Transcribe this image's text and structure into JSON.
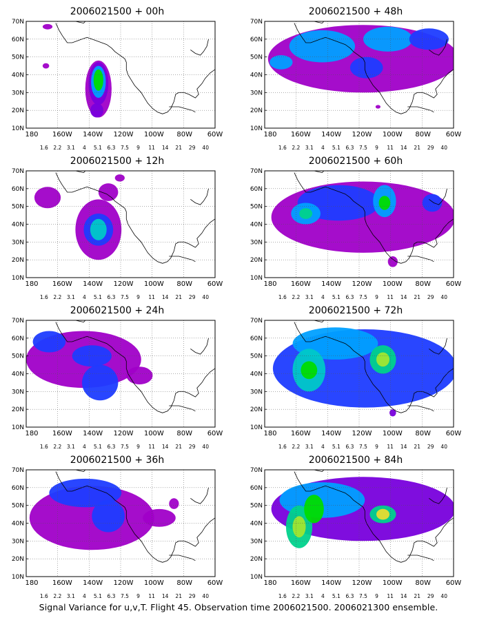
{
  "panels": [
    {
      "title": "2006021500 + 00h"
    },
    {
      "title": "2006021500 + 48h"
    },
    {
      "title": "2006021500 + 12h"
    },
    {
      "title": "2006021500 + 60h"
    },
    {
      "title": "2006021500 + 24h"
    },
    {
      "title": "2006021500 + 72h"
    },
    {
      "title": "2006021500 + 36h"
    },
    {
      "title": "2006021500 + 84h"
    }
  ],
  "lat_labels": [
    "70N",
    "60N",
    "50N",
    "40N",
    "30N",
    "20N",
    "10N"
  ],
  "lon_labels": [
    "180",
    "160W",
    "140W",
    "120W",
    "100W",
    "80W",
    "60W"
  ],
  "colorbar": {
    "labels": [
      "1.6",
      "2.2",
      "3.1",
      "4",
      "5.1",
      "6.3",
      "7.5",
      "9",
      "11",
      "14",
      "21",
      "29",
      "40"
    ],
    "colors": [
      "#a000c8",
      "#7800dc",
      "#1e3cff",
      "#00a0ff",
      "#00c8c8",
      "#00d28c",
      "#00dc00",
      "#a0e632",
      "#e6dc32",
      "#e6af2d",
      "#f08228",
      "#fa3c3c",
      "#f00082"
    ]
  },
  "caption": "Signal Variance for u,v,T. Flight 45. Observation time 2006021500. 2006021300 ensemble."
}
